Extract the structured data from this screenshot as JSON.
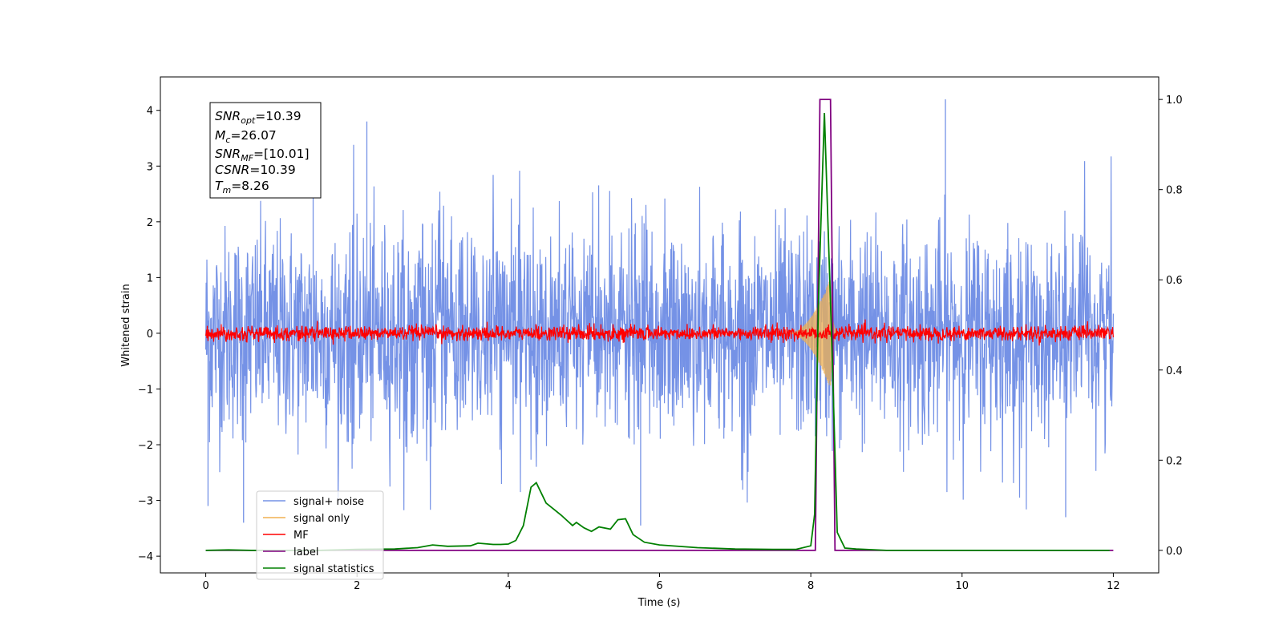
{
  "chart_data": {
    "type": "line",
    "xlabel": "Time (s)",
    "ylabel": "Whitened strain",
    "xlim": [
      -0.6,
      12.6
    ],
    "ylim": [
      -4.3,
      4.6
    ],
    "y2lim": [
      -0.05,
      1.05
    ],
    "xticks": [
      0,
      2,
      4,
      6,
      8,
      10,
      12
    ],
    "xtick_labels": [
      "0",
      "2",
      "4",
      "6",
      "8",
      "10",
      "12"
    ],
    "yticks": [
      -4,
      -3,
      -2,
      -1,
      0,
      1,
      2,
      3,
      4
    ],
    "ytick_labels": [
      "−4",
      "−3",
      "−2",
      "−1",
      "0",
      "1",
      "2",
      "3",
      "4"
    ],
    "y2ticks": [
      0.0,
      0.2,
      0.4,
      0.6,
      0.8,
      1.0
    ],
    "y2tick_labels": [
      "0.0",
      "0.2",
      "0.4",
      "0.6",
      "0.8",
      "1.0"
    ],
    "grid": false,
    "legend_position": "lower-left",
    "stats_box": {
      "snr_opt": {
        "sym": "SNR",
        "sub": "opt",
        "rest": "=10.39"
      },
      "mc": {
        "sym": "M",
        "sub": "c",
        "rest": "=26.07"
      },
      "snr_mf": {
        "sym": "SNR",
        "sub": "MF",
        "rest": "=[10.01]"
      },
      "csnr": {
        "sym": "CSNR",
        "sub": "",
        "rest": "=10.39"
      },
      "tm": {
        "sym": "T",
        "sub": "m",
        "rest": "=8.26"
      }
    },
    "series": [
      {
        "name": "signal+ noise",
        "color": "#7592e6",
        "axis": "left",
        "kind": "noise",
        "x_start": 0,
        "x_end": 12,
        "std": 1.0,
        "peaks": [
          {
            "x": 0.03,
            "y": -3.1
          },
          {
            "x": 1.42,
            "y": 3.75
          },
          {
            "x": 2.13,
            "y": 3.8
          },
          {
            "x": 5.75,
            "y": -3.45
          },
          {
            "x": 9.78,
            "y": 4.2
          },
          {
            "x": 11.37,
            "y": -3.3
          },
          {
            "x": 0.5,
            "y": -3.4
          }
        ]
      },
      {
        "name": "signal only",
        "color": "#f0b050",
        "axis": "left",
        "kind": "chirp",
        "t_merge": 8.26,
        "peak_amp": 1.0,
        "rise_start": 7.7
      },
      {
        "name": "MF",
        "color": "#ff0000",
        "axis": "left",
        "kind": "noise",
        "x_start": 0,
        "x_end": 12,
        "std": 0.065
      },
      {
        "name": "label",
        "color": "#800080",
        "axis": "right",
        "kind": "step",
        "x": [
          0,
          8.06,
          8.12,
          8.26,
          8.32,
          12
        ],
        "y": [
          0,
          0,
          1,
          1,
          0,
          0
        ]
      },
      {
        "name": "signal statistics",
        "color": "#008000",
        "axis": "right",
        "kind": "line",
        "x": [
          0,
          0.3,
          0.6,
          1.0,
          1.5,
          2.0,
          2.5,
          2.8,
          3.0,
          3.2,
          3.5,
          3.6,
          3.8,
          3.9,
          4.0,
          4.1,
          4.2,
          4.3,
          4.37,
          4.5,
          4.7,
          4.85,
          4.9,
          5.0,
          5.1,
          5.2,
          5.35,
          5.45,
          5.55,
          5.65,
          5.8,
          6.0,
          6.5,
          7.0,
          7.5,
          7.8,
          8.0,
          8.05,
          8.1,
          8.18,
          8.28,
          8.35,
          8.45,
          8.6,
          9.0,
          10.0,
          11.0,
          11.95
        ],
        "y": [
          0.0,
          0.001,
          0.0,
          0.0,
          0.0,
          0.002,
          0.003,
          0.006,
          0.012,
          0.009,
          0.01,
          0.016,
          0.013,
          0.013,
          0.014,
          0.022,
          0.055,
          0.14,
          0.15,
          0.105,
          0.078,
          0.055,
          0.062,
          0.05,
          0.042,
          0.052,
          0.047,
          0.068,
          0.07,
          0.035,
          0.018,
          0.012,
          0.006,
          0.003,
          0.002,
          0.002,
          0.01,
          0.08,
          0.55,
          0.97,
          0.45,
          0.04,
          0.005,
          0.003,
          0.0,
          0.0,
          0.0,
          0.0
        ]
      }
    ]
  }
}
